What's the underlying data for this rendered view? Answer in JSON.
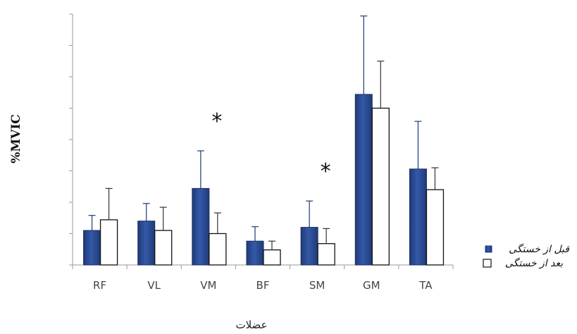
{
  "chart_data": {
    "type": "bar",
    "ylabel": "%MVIC",
    "xlabel": "عضلات",
    "categories": [
      "RF",
      "VL",
      "VM",
      "BF",
      "SM",
      "GM",
      "TA"
    ],
    "series": [
      {
        "name": "قبل از خستگی",
        "color": "#2e4d8f",
        "values": [
          5.5,
          7.0,
          12.2,
          3.8,
          6.0,
          27.2,
          15.3
        ],
        "errors": [
          2.4,
          2.8,
          6.0,
          2.3,
          4.2,
          12.5,
          7.6
        ]
      },
      {
        "name": "بعد از خستگی",
        "color": "#ffffff",
        "values": [
          7.2,
          5.5,
          5.0,
          2.4,
          3.4,
          25.0,
          12.0
        ],
        "errors": [
          5.0,
          3.7,
          3.3,
          1.4,
          2.4,
          7.5,
          3.5
        ]
      }
    ],
    "ylim": [
      0,
      40
    ],
    "annotations": [
      {
        "text": "*",
        "category": "VM"
      },
      {
        "text": "*",
        "category": "SM"
      }
    ],
    "legend_position": "right"
  }
}
